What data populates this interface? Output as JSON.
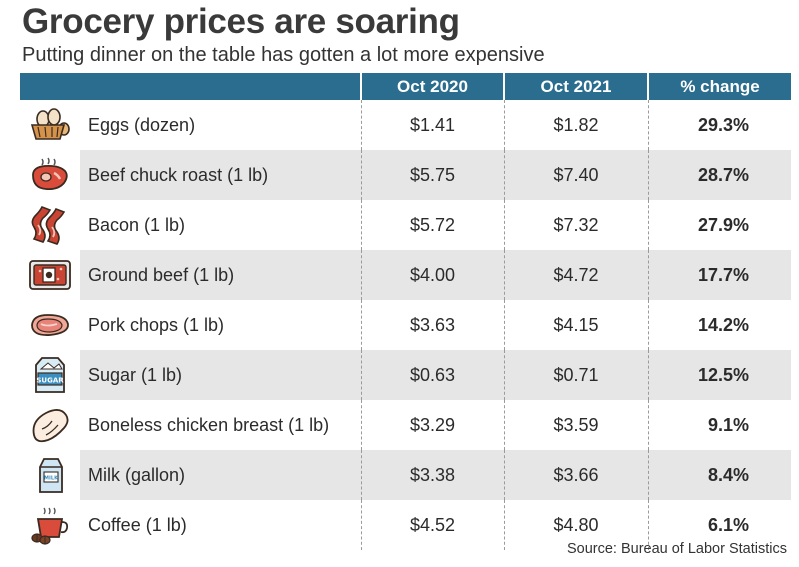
{
  "title": "Grocery prices are soaring",
  "subtitle": "Putting dinner on the table has gotten a lot more expensive",
  "source": "Source: Bureau of Labor Statistics",
  "colors": {
    "header_bg": "#2a6d8e",
    "row_shade": "#e6e6e6",
    "accent_red": "#d94b3a",
    "accent_blue": "#3b8fc0"
  },
  "chart_data": {
    "type": "table",
    "columns": [
      "Oct 2020",
      "Oct 2021",
      "% change"
    ],
    "rows": [
      {
        "icon": "eggs-icon",
        "item": "Eggs (dozen)",
        "oct2020": "$1.41",
        "oct2021": "$1.82",
        "change": "29.3%"
      },
      {
        "icon": "beef-steak-icon",
        "item": "Beef chuck roast (1 lb)",
        "oct2020": "$5.75",
        "oct2021": "$7.40",
        "change": "28.7%"
      },
      {
        "icon": "bacon-icon",
        "item": "Bacon (1 lb)",
        "oct2020": "$5.72",
        "oct2021": "$7.32",
        "change": "27.9%"
      },
      {
        "icon": "ground-beef-icon",
        "item": "Ground beef (1 lb)",
        "oct2020": "$4.00",
        "oct2021": "$4.72",
        "change": "17.7%"
      },
      {
        "icon": "pork-chop-icon",
        "item": "Pork chops (1 lb)",
        "oct2020": "$3.63",
        "oct2021": "$4.15",
        "change": "14.2%"
      },
      {
        "icon": "sugar-bag-icon",
        "item": "Sugar (1 lb)",
        "oct2020": "$0.63",
        "oct2021": "$0.71",
        "change": "12.5%"
      },
      {
        "icon": "chicken-breast-icon",
        "item": "Boneless chicken breast (1 lb)",
        "oct2020": "$3.29",
        "oct2021": "$3.59",
        "change": "9.1%"
      },
      {
        "icon": "milk-carton-icon",
        "item": "Milk (gallon)",
        "oct2020": "$3.38",
        "oct2021": "$3.66",
        "change": "8.4%"
      },
      {
        "icon": "coffee-cup-icon",
        "item": "Coffee (1 lb)",
        "oct2020": "$4.52",
        "oct2021": "$4.80",
        "change": "6.1%"
      }
    ]
  }
}
